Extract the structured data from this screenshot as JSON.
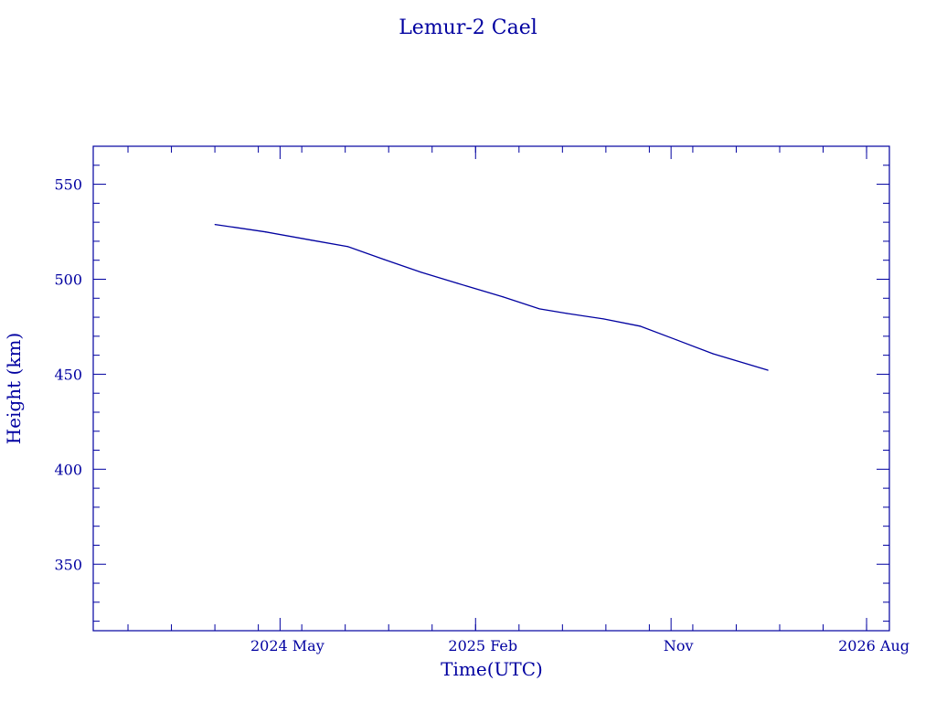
{
  "chart_data": {
    "type": "line",
    "title": "Lemur-2 Cael",
    "xlabel": "Time(UTC)",
    "ylabel": "Height (km)",
    "x_units": "months since 2024 Jan",
    "xlim": [
      -4.6,
      32.05
    ],
    "ylim": [
      315,
      570
    ],
    "x_ticks": [
      {
        "value": 4,
        "label": "2024 May"
      },
      {
        "value": 13,
        "label": "2025 Feb"
      },
      {
        "value": 22,
        "label": "Nov"
      },
      {
        "value": 31,
        "label": "2026 Aug"
      }
    ],
    "y_ticks": [
      {
        "value": 350,
        "label": "350"
      },
      {
        "value": 400,
        "label": "400"
      },
      {
        "value": 450,
        "label": "450"
      },
      {
        "value": 500,
        "label": "500"
      },
      {
        "value": 550,
        "label": "550"
      }
    ],
    "grid": false,
    "series": [
      {
        "name": "Height",
        "color": "#0000a0",
        "x": [
          1.01,
          3.33,
          5.43,
          7.11,
          8.79,
          10.48,
          12.16,
          14.26,
          15.94,
          17.2,
          18.89,
          20.57,
          22.25,
          23.93,
          26.46
        ],
        "y": [
          528.8,
          524.9,
          520.6,
          517.2,
          510.4,
          503.7,
          497.9,
          490.7,
          484.4,
          482.0,
          479.1,
          475.3,
          468.1,
          460.8,
          452.1
        ]
      }
    ]
  }
}
